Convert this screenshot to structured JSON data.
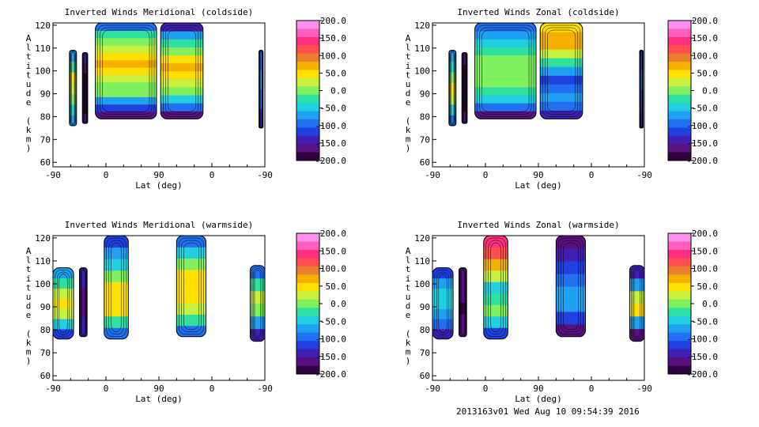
{
  "colors": {
    "levels": [
      "#ff90f0",
      "#ff60c0",
      "#ff3080",
      "#ff5050",
      "#e88030",
      "#f5b000",
      "#ffe000",
      "#c8f040",
      "#80f060",
      "#30e0a0",
      "#20d0e0",
      "#20a0f0",
      "#2070f0",
      "#2040e0",
      "#4020b0",
      "#5a1080",
      "#300040"
    ]
  },
  "footer": "2013163v01 Wed Aug 10 09:54:39 2016",
  "chart_data": [
    {
      "id": "meridional-coldside",
      "type": "heatmap",
      "title": "Inverted Winds Meridional (coldside)",
      "xlabel": "Lat (deg)",
      "ylabel": "Altitude (km)",
      "ylabel_chars": [
        "A",
        "l",
        "t",
        "i",
        "t",
        "u",
        "d",
        "e",
        " ",
        "(",
        "k",
        "m",
        ")"
      ],
      "x_ticks": [
        "-90",
        "0",
        "90",
        "0",
        "-90"
      ],
      "y_ticks": [
        "60",
        "70",
        "80",
        "90",
        "100",
        "110",
        "120"
      ],
      "ylim": [
        58,
        121
      ],
      "colorbar": {
        "ticks": [
          "200.0",
          "150.0",
          "100.0",
          "50.0",
          "0.0",
          "-50.0",
          "-100.0",
          "-150.0",
          "-200.0"
        ],
        "range": [
          -200,
          200
        ]
      },
      "blobs": [
        {
          "x0": -62,
          "x1": -50,
          "y0": 76,
          "y1": 109,
          "values": [
            -80,
            -40,
            -10,
            20,
            40,
            -20,
            -70
          ]
        },
        {
          "x0": -40,
          "x1": -31,
          "y0": 77,
          "y1": 108,
          "values": [
            -160,
            -180,
            -190,
            -190,
            -185,
            -170,
            -150
          ]
        },
        {
          "x0": -18,
          "x1": 86,
          "y0": 79,
          "y1": 121,
          "values": [
            -170,
            -120,
            -60,
            -10,
            10,
            30,
            45,
            60,
            50,
            30,
            10,
            -30,
            -90
          ]
        },
        {
          "x0": 93,
          "x1": 165,
          "y0": 79,
          "y1": 121,
          "values": [
            -160,
            -100,
            -40,
            0,
            20,
            40,
            60,
            40,
            10,
            -20,
            -80,
            -140
          ]
        },
        {
          "x0": 260,
          "x1": 267,
          "y0": 75,
          "y1": 109,
          "values": [
            -140,
            -100,
            -60,
            -100
          ]
        }
      ]
    },
    {
      "id": "zonal-coldside",
      "type": "heatmap",
      "title": "Inverted Winds Zonal (coldside)",
      "xlabel": "Lat (deg)",
      "ylabel": "Altitude (km)",
      "ylabel_chars": [
        "A",
        "l",
        "t",
        "i",
        "t",
        "u",
        "d",
        "e",
        " ",
        "(",
        "k",
        "m",
        ")"
      ],
      "x_ticks": [
        "-90",
        "0",
        "90",
        "0",
        "-90"
      ],
      "y_ticks": [
        "60",
        "70",
        "80",
        "90",
        "100",
        "110",
        "120"
      ],
      "ylim": [
        58,
        121
      ],
      "colorbar": {
        "ticks": [
          "200.0",
          "150.0",
          "100.0",
          "50.0",
          "0.0",
          "-50.0",
          "-100.0",
          "-150.0",
          "-200.0"
        ],
        "range": [
          -200,
          200
        ]
      },
      "blobs": [
        {
          "x0": -62,
          "x1": -50,
          "y0": 76,
          "y1": 109,
          "values": [
            -90,
            -40,
            30,
            40,
            -10,
            -40,
            -80
          ]
        },
        {
          "x0": -40,
          "x1": -31,
          "y0": 77,
          "y1": 108,
          "values": [
            -170,
            -180,
            -190,
            -190,
            -180,
            -170
          ]
        },
        {
          "x0": -18,
          "x1": 86,
          "y0": 79,
          "y1": 121,
          "values": [
            -160,
            -90,
            -50,
            -20,
            -10,
            0,
            10,
            0,
            -20,
            -40,
            -60,
            -90
          ]
        },
        {
          "x0": 93,
          "x1": 165,
          "y0": 79,
          "y1": 121,
          "values": [
            -150,
            -100,
            -80,
            -90,
            -110,
            -70,
            -20,
            20,
            60,
            80,
            40
          ]
        },
        {
          "x0": 262,
          "x1": 268,
          "y0": 75,
          "y1": 109,
          "values": [
            -150,
            -120,
            -90,
            -120
          ]
        }
      ]
    },
    {
      "id": "meridional-warmside",
      "type": "heatmap",
      "title": "Inverted Winds Meridional (warmside)",
      "xlabel": "Lat (deg)",
      "ylabel": "Altitude (km)",
      "ylabel_chars": [
        "A",
        "l",
        "t",
        "i",
        "t",
        "u",
        "d",
        "e",
        " ",
        "(",
        "k",
        "m",
        ")"
      ],
      "x_ticks": [
        "-90",
        "0",
        "90",
        "0",
        "-90"
      ],
      "y_ticks": [
        "60",
        "70",
        "80",
        "90",
        "100",
        "110",
        "120"
      ],
      "ylim": [
        58,
        121
      ],
      "colorbar": {
        "ticks": [
          "200.0",
          "150.0",
          "100.0",
          "50.0",
          "0.0",
          "-50.0",
          "-100.0",
          "-150.0",
          "-200.0"
        ],
        "range": [
          -200,
          200
        ]
      },
      "blobs": [
        {
          "x0": -90,
          "x1": -55,
          "y0": 76,
          "y1": 107,
          "values": [
            -120,
            -40,
            20,
            40,
            20,
            -30,
            -80
          ]
        },
        {
          "x0": -45,
          "x1": -32,
          "y0": 77,
          "y1": 107,
          "values": [
            -140,
            -150,
            -160,
            -170,
            -160,
            -150,
            -130
          ]
        },
        {
          "x0": -3,
          "x1": 38,
          "y0": 76,
          "y1": 121,
          "values": [
            -100,
            -30,
            40,
            50,
            40,
            0,
            -40,
            -80,
            -120
          ]
        },
        {
          "x0": 120,
          "x1": 170,
          "y0": 77,
          "y1": 121,
          "values": [
            -100,
            -20,
            20,
            40,
            45,
            40,
            10,
            -40,
            -100
          ]
        },
        {
          "x0": 245,
          "x1": 270,
          "y0": 75,
          "y1": 108,
          "values": [
            -140,
            -80,
            -10,
            20,
            -30,
            -90
          ]
        }
      ]
    },
    {
      "id": "zonal-warmside",
      "type": "heatmap",
      "title": "Inverted Winds Zonal (warmside)",
      "xlabel": "Lat (deg)",
      "ylabel": "Altitude (km)",
      "ylabel_chars": [
        "A",
        "l",
        "t",
        "i",
        "t",
        "u",
        "d",
        "e",
        " ",
        "(",
        "k",
        "m",
        ")"
      ],
      "x_ticks": [
        "-90",
        "0",
        "90",
        "0",
        "-90"
      ],
      "y_ticks": [
        "60",
        "70",
        "80",
        "90",
        "100",
        "110",
        "120"
      ],
      "ylim": [
        58,
        121
      ],
      "colorbar": {
        "ticks": [
          "200.0",
          "150.0",
          "100.0",
          "50.0",
          "0.0",
          "-50.0",
          "-100.0",
          "-150.0",
          "-200.0"
        ],
        "range": [
          -200,
          200
        ]
      },
      "blobs": [
        {
          "x0": -90,
          "x1": -55,
          "y0": 76,
          "y1": 107,
          "values": [
            -140,
            -90,
            -60,
            -40,
            -50,
            -80,
            -120
          ]
        },
        {
          "x0": -45,
          "x1": -32,
          "y0": 77,
          "y1": 107,
          "values": [
            -160,
            -170,
            -180,
            -175,
            -170,
            -160
          ]
        },
        {
          "x0": -3,
          "x1": 38,
          "y0": 76,
          "y1": 121,
          "values": [
            -120,
            -50,
            0,
            -20,
            -40,
            20,
            80,
            120,
            140
          ]
        },
        {
          "x0": 120,
          "x1": 170,
          "y0": 77,
          "y1": 121,
          "values": [
            -170,
            -120,
            -60,
            -80,
            -100,
            -120,
            -150,
            -170
          ]
        },
        {
          "x0": 245,
          "x1": 270,
          "y0": 75,
          "y1": 108,
          "values": [
            -160,
            -80,
            40,
            20,
            -80,
            -140
          ]
        }
      ]
    }
  ]
}
